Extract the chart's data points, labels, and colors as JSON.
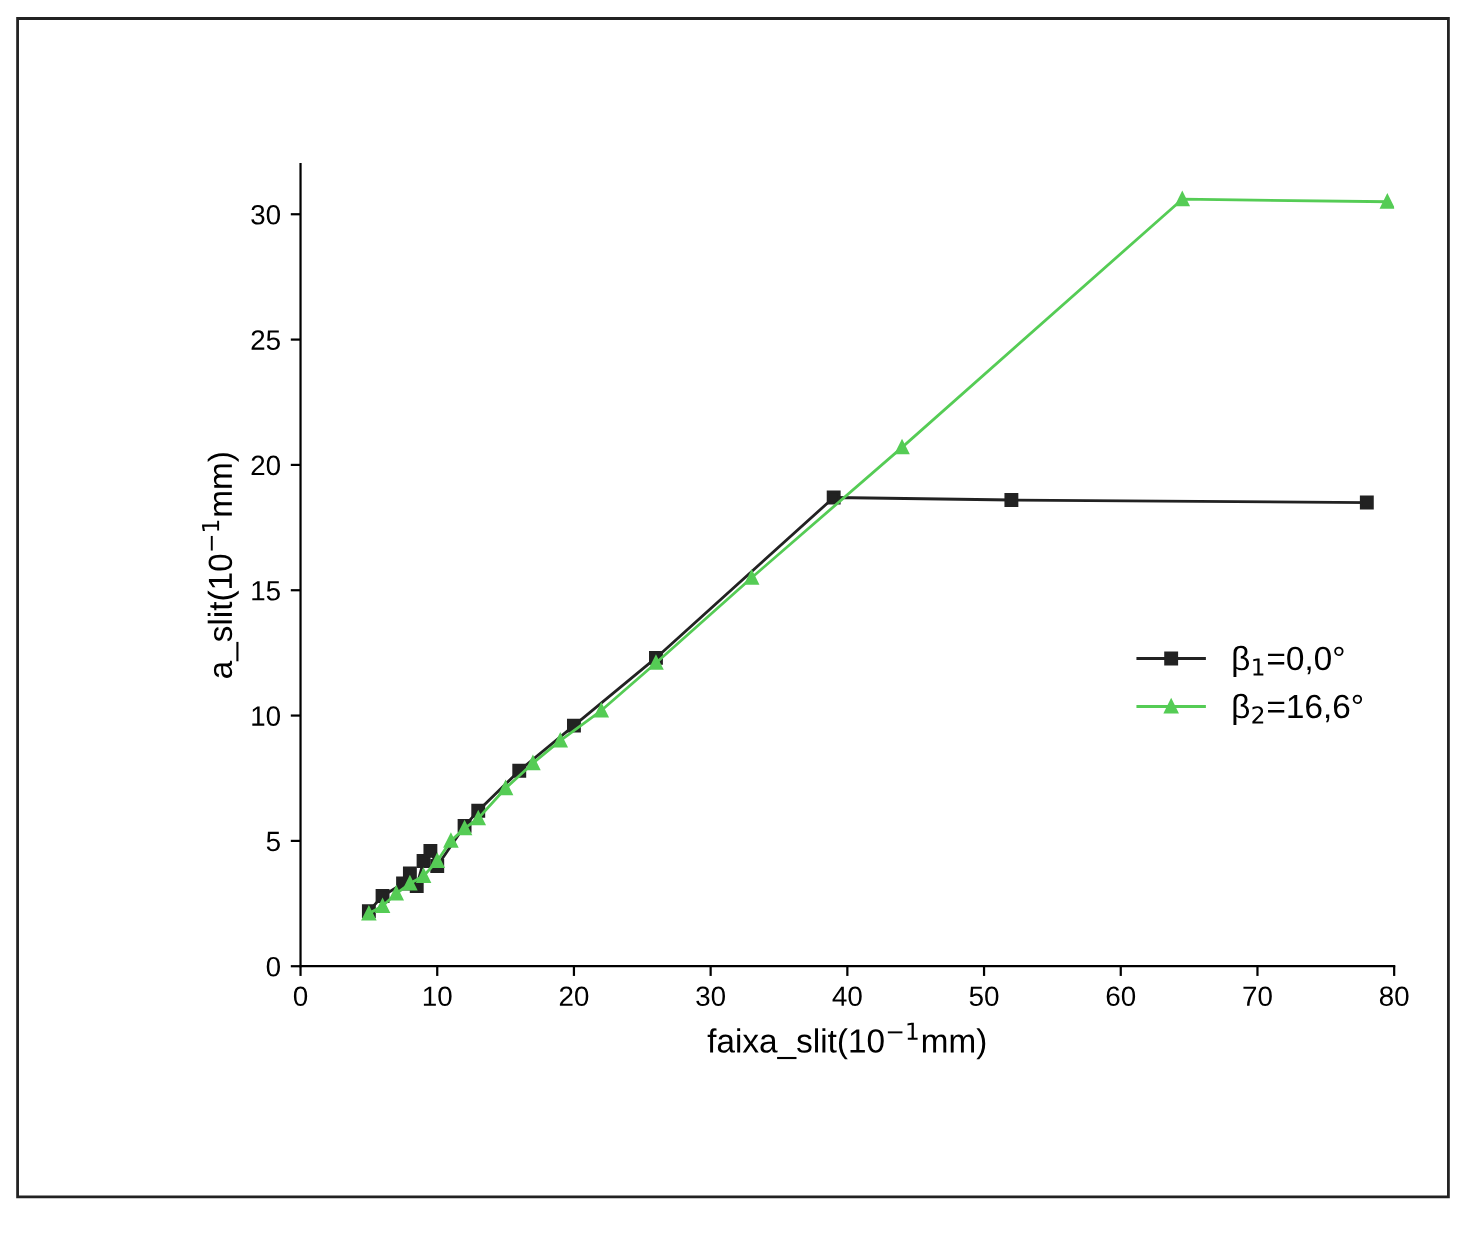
{
  "chart_data": {
    "type": "line",
    "xlabel": "faixa_slit(10$^{−1}$mm)",
    "ylabel": "a_slit(10$^{−1}$mm)",
    "xlim": [
      0,
      80
    ],
    "ylim": [
      0,
      32
    ],
    "xticks": [
      0,
      10,
      20,
      30,
      40,
      50,
      60,
      70,
      80
    ],
    "yticks": [
      0,
      5,
      10,
      15,
      20,
      25,
      30
    ],
    "grid": false,
    "legend": "right",
    "series": [
      {
        "name": "β$_{1}$=0,0°",
        "color": "#222222",
        "marker": "square",
        "x": [
          5,
          6,
          7.5,
          8,
          8.5,
          9,
          9.5,
          10,
          12,
          13,
          16,
          20,
          26,
          39,
          52,
          78
        ],
        "values": [
          2.2,
          2.8,
          3.3,
          3.7,
          3.2,
          4.2,
          4.6,
          4.0,
          5.6,
          6.2,
          7.8,
          9.6,
          12.3,
          18.7,
          18.6,
          18.5
        ]
      },
      {
        "name": "β$_{2}$=16,6°",
        "color": "#55cc55",
        "marker": "triangle",
        "x": [
          5,
          6,
          7,
          8,
          9,
          10,
          11,
          12,
          13,
          15,
          17,
          19,
          22,
          26,
          33,
          44,
          64.5,
          79.5
        ],
        "values": [
          2.1,
          2.4,
          2.9,
          3.3,
          3.6,
          4.2,
          5.0,
          5.5,
          5.9,
          7.1,
          8.1,
          9.0,
          10.2,
          12.1,
          15.5,
          20.7,
          30.6,
          30.5
        ]
      }
    ]
  }
}
